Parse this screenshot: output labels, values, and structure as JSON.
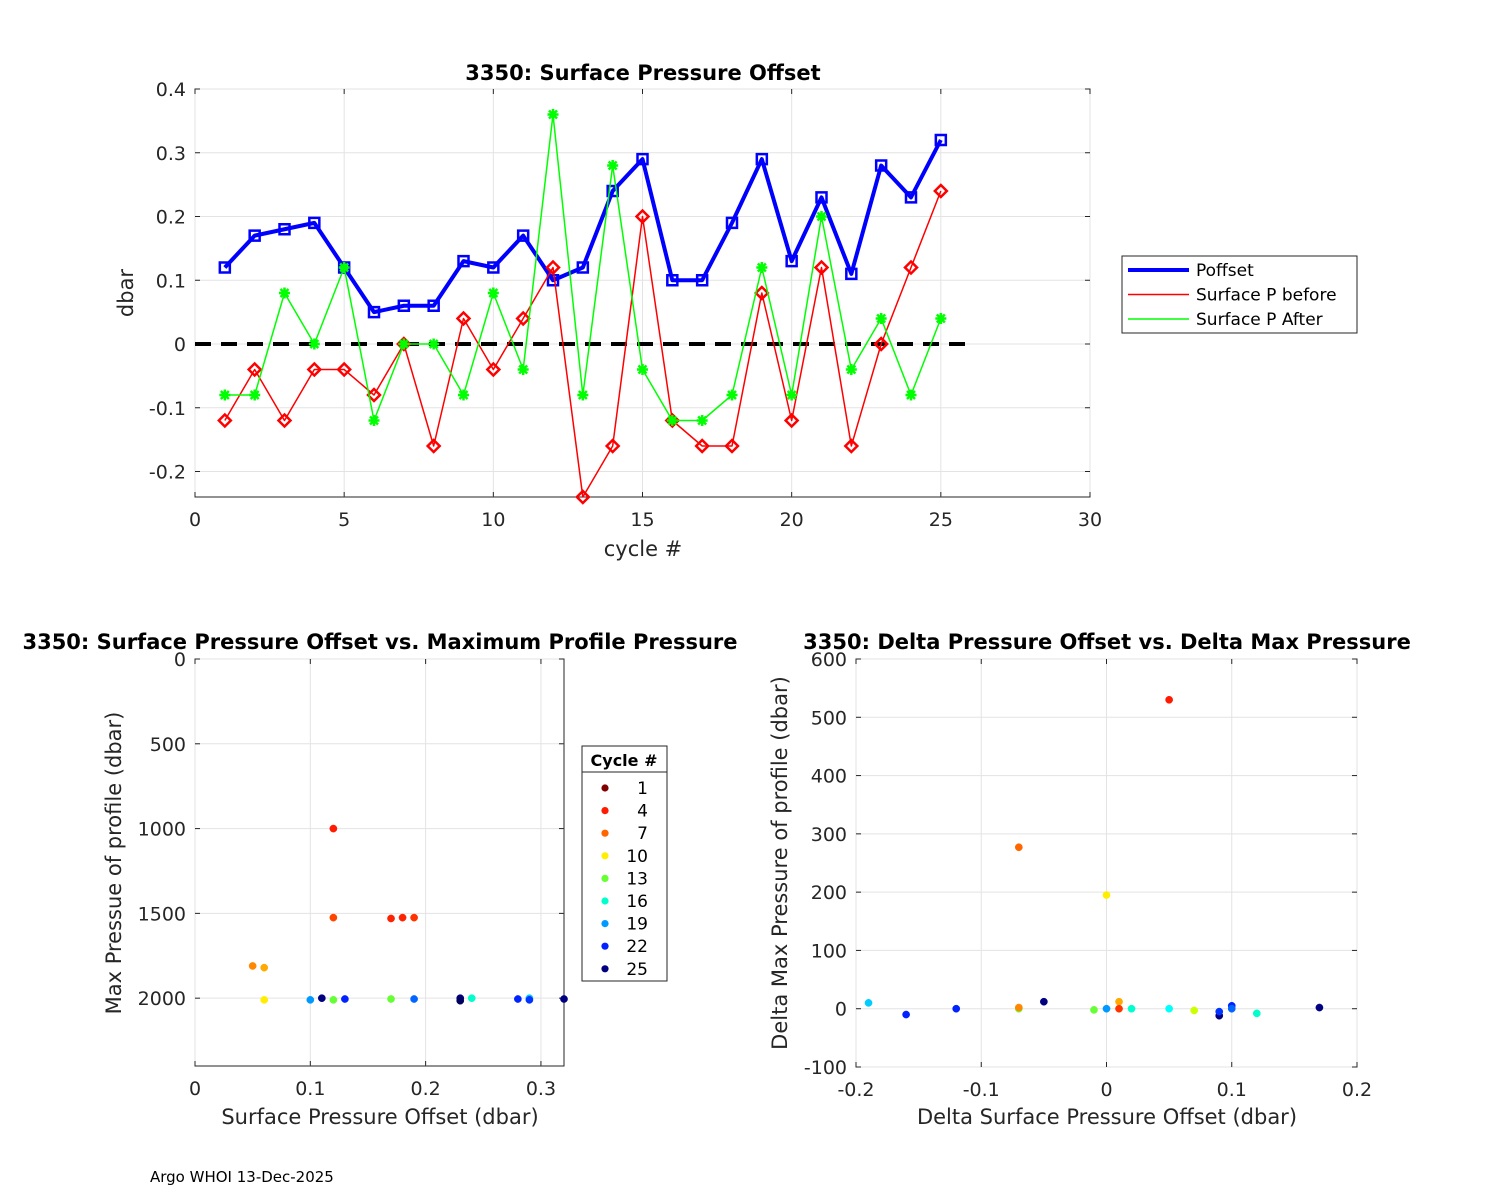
{
  "footer": "Argo WHOI 13-Dec-2025",
  "chart_data": [
    {
      "type": "line",
      "title": "3350: Surface Pressure Offset",
      "xlabel": "cycle #",
      "ylabel": "dbar",
      "xlim": [
        0,
        30
      ],
      "ylim": [
        -0.24,
        0.4
      ],
      "xticks": [
        0,
        5,
        10,
        15,
        20,
        25,
        30
      ],
      "yticks": [
        -0.2,
        -0.1,
        0,
        0.1,
        0.2,
        0.3,
        0.4
      ],
      "ytick_labels": [
        "-0.2",
        "-0.1",
        "0",
        "0.1",
        "0.2",
        "0.3",
        "0.4"
      ],
      "grid": true,
      "legend_position": "outside-right",
      "zero_line": {
        "x": [
          0,
          26
        ],
        "y": 0,
        "style": "dashed",
        "color": "#000000"
      },
      "x": [
        1,
        2,
        3,
        4,
        5,
        6,
        7,
        8,
        9,
        10,
        11,
        12,
        13,
        14,
        15,
        16,
        17,
        18,
        19,
        20,
        21,
        22,
        23,
        24,
        25
      ],
      "series": [
        {
          "name": "Poffset",
          "color": "#0000ff",
          "marker": "square",
          "width": 4,
          "values": [
            0.12,
            0.17,
            0.18,
            0.19,
            0.12,
            0.05,
            0.06,
            0.06,
            0.13,
            0.12,
            0.17,
            0.1,
            0.12,
            0.24,
            0.29,
            0.1,
            0.1,
            0.19,
            0.29,
            0.13,
            0.23,
            0.11,
            0.28,
            0.23,
            0.32
          ]
        },
        {
          "name": "Surface P before",
          "color": "#ff0000",
          "marker": "diamond",
          "width": 1.5,
          "values": [
            -0.12,
            -0.04,
            -0.12,
            -0.04,
            -0.04,
            -0.08,
            0.0,
            -0.16,
            0.04,
            -0.04,
            0.04,
            0.12,
            -0.24,
            -0.16,
            0.2,
            -0.12,
            -0.16,
            -0.16,
            0.08,
            -0.12,
            0.12,
            -0.16,
            0.0,
            0.12,
            0.24
          ]
        },
        {
          "name": "Surface P After",
          "color": "#00ff00",
          "marker": "star",
          "width": 1.5,
          "values": [
            -0.08,
            -0.08,
            0.08,
            0.0,
            0.12,
            -0.12,
            0.0,
            0.0,
            -0.08,
            0.08,
            -0.04,
            0.36,
            -0.08,
            0.28,
            -0.04,
            -0.12,
            -0.12,
            -0.08,
            0.12,
            -0.08,
            0.2,
            -0.04,
            0.04,
            -0.08,
            0.04
          ]
        }
      ]
    },
    {
      "type": "scatter",
      "title": "3350: Surface Pressure Offset vs. Maximum Profile Pressure",
      "xlabel": "Surface Pressure Offset (dbar)",
      "ylabel": "Max Pressue of profile (dbar)",
      "xlim": [
        0,
        0.32
      ],
      "ylim": [
        0,
        2400
      ],
      "y_reversed": true,
      "xticks": [
        0,
        0.1,
        0.2,
        0.3
      ],
      "xtick_labels": [
        "0",
        "0.1",
        "0.2",
        "0.3"
      ],
      "yticks": [
        0,
        500,
        1000,
        1500,
        2000
      ],
      "grid": true,
      "legend": {
        "title": "Cycle #",
        "entries": [
          {
            "label": "1",
            "color": "#800000"
          },
          {
            "label": "4",
            "color": "#ff1a00"
          },
          {
            "label": "7",
            "color": "#ff6600"
          },
          {
            "label": "10",
            "color": "#ffee00"
          },
          {
            "label": "13",
            "color": "#66ff33"
          },
          {
            "label": "16",
            "color": "#00ffcc"
          },
          {
            "label": "19",
            "color": "#0099ff"
          },
          {
            "label": "22",
            "color": "#0022ff"
          },
          {
            "label": "25",
            "color": "#000080"
          }
        ]
      },
      "points": [
        {
          "x": 0.12,
          "y": 1000,
          "color": "#ff1a00"
        },
        {
          "x": 0.12,
          "y": 1525,
          "color": "#ff4400"
        },
        {
          "x": 0.17,
          "y": 1530,
          "color": "#ff2200"
        },
        {
          "x": 0.18,
          "y": 1525,
          "color": "#ff2200"
        },
        {
          "x": 0.19,
          "y": 1525,
          "color": "#ff3300"
        },
        {
          "x": 0.05,
          "y": 1810,
          "color": "#ff8800"
        },
        {
          "x": 0.06,
          "y": 1820,
          "color": "#ffaa00"
        },
        {
          "x": 0.06,
          "y": 2010,
          "color": "#ffee00"
        },
        {
          "x": 0.1,
          "y": 2010,
          "color": "#0099ff"
        },
        {
          "x": 0.11,
          "y": 2000,
          "color": "#000080"
        },
        {
          "x": 0.12,
          "y": 2010,
          "color": "#66ff33"
        },
        {
          "x": 0.13,
          "y": 2005,
          "color": "#0022ff"
        },
        {
          "x": 0.17,
          "y": 2005,
          "color": "#66ff33"
        },
        {
          "x": 0.19,
          "y": 2005,
          "color": "#0066ff"
        },
        {
          "x": 0.23,
          "y": 2000,
          "color": "#000080"
        },
        {
          "x": 0.23,
          "y": 2015,
          "color": "#000060"
        },
        {
          "x": 0.24,
          "y": 2000,
          "color": "#00ffcc"
        },
        {
          "x": 0.28,
          "y": 2005,
          "color": "#0022ff"
        },
        {
          "x": 0.29,
          "y": 2000,
          "color": "#00ccff"
        },
        {
          "x": 0.29,
          "y": 2010,
          "color": "#0033ff"
        },
        {
          "x": 0.32,
          "y": 2005,
          "color": "#000080"
        }
      ]
    },
    {
      "type": "scatter",
      "title": "3350: Delta Pressure Offset vs. Delta Max Pressure",
      "xlabel": "Delta Surface Pressure Offset (dbar)",
      "ylabel": "Delta Max Pressure of profile (dbar)",
      "xlim": [
        -0.2,
        0.2
      ],
      "ylim": [
        -100,
        600
      ],
      "xticks": [
        -0.2,
        -0.1,
        0,
        0.1,
        0.2
      ],
      "xtick_labels": [
        "-0.2",
        "-0.1",
        "0",
        "0.1",
        "0.2"
      ],
      "yticks": [
        -100,
        0,
        100,
        200,
        300,
        400,
        500,
        600
      ],
      "grid": true,
      "points": [
        {
          "x": 0.05,
          "y": 530,
          "color": "#ff1a00"
        },
        {
          "x": -0.07,
          "y": 277,
          "color": "#ff6600"
        },
        {
          "x": 0.0,
          "y": 195,
          "color": "#ffee00"
        },
        {
          "x": -0.19,
          "y": 10,
          "color": "#00ccff"
        },
        {
          "x": -0.16,
          "y": -10,
          "color": "#0022ff"
        },
        {
          "x": -0.12,
          "y": 0,
          "color": "#0022ff"
        },
        {
          "x": -0.07,
          "y": 0,
          "color": "#66ff33"
        },
        {
          "x": -0.07,
          "y": 2,
          "color": "#ff8800"
        },
        {
          "x": -0.05,
          "y": 12,
          "color": "#000080"
        },
        {
          "x": -0.01,
          "y": -2,
          "color": "#66ff33"
        },
        {
          "x": 0.0,
          "y": 0,
          "color": "#0099ff"
        },
        {
          "x": 0.01,
          "y": 12,
          "color": "#ffaa00"
        },
        {
          "x": 0.01,
          "y": 0,
          "color": "#ff3300"
        },
        {
          "x": 0.02,
          "y": 0,
          "color": "#00ffcc"
        },
        {
          "x": 0.05,
          "y": 0,
          "color": "#00ffff"
        },
        {
          "x": 0.07,
          "y": -3,
          "color": "#ccff00"
        },
        {
          "x": 0.09,
          "y": -12,
          "color": "#000080"
        },
        {
          "x": 0.09,
          "y": -5,
          "color": "#0033ff"
        },
        {
          "x": 0.1,
          "y": 5,
          "color": "#0022ff"
        },
        {
          "x": 0.1,
          "y": 0,
          "color": "#0066ff"
        },
        {
          "x": 0.12,
          "y": -8,
          "color": "#00ffcc"
        },
        {
          "x": 0.17,
          "y": 2,
          "color": "#000080"
        }
      ]
    }
  ]
}
